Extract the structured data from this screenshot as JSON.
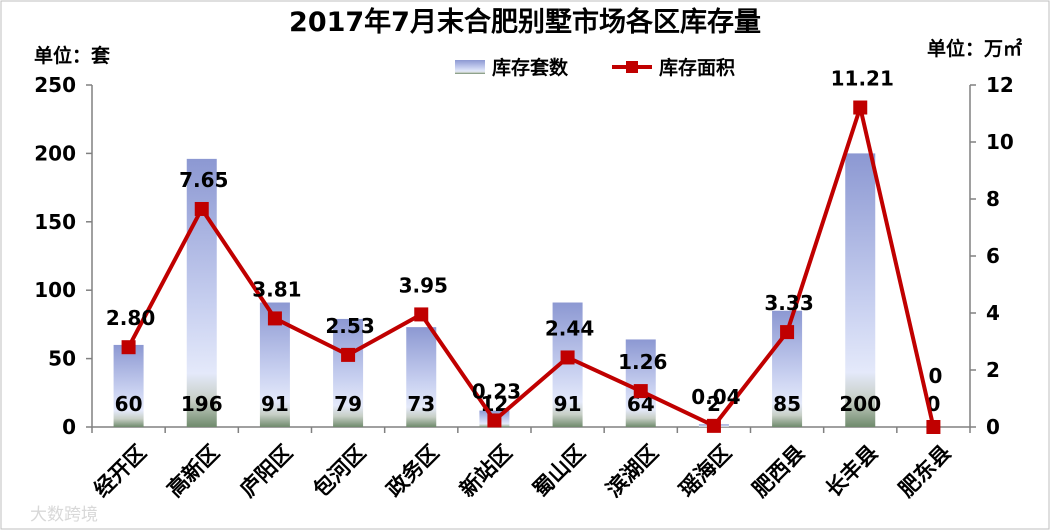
{
  "chart_data": {
    "type": "bar",
    "title": "2017年7月末合肥别墅市场各区库存量",
    "y_left_unit": "单位：套",
    "y_right_unit": "单位：万㎡",
    "categories": [
      "经开区",
      "高新区",
      "庐阳区",
      "包河区",
      "政务区",
      "新站区",
      "蜀山区",
      "滨湖区",
      "瑶海区",
      "肥西县",
      "长丰县",
      "肥东县"
    ],
    "series": [
      {
        "name": "库存套数",
        "type": "bar",
        "axis": "left",
        "values": [
          60,
          196,
          91,
          79,
          73,
          12,
          91,
          64,
          2,
          85,
          200,
          0
        ],
        "labels": [
          "60",
          "196",
          "91",
          "79",
          "73",
          "12",
          "91",
          "64",
          "2",
          "85",
          "200",
          "0"
        ],
        "color": "#8e9bd4"
      },
      {
        "name": "库存面积",
        "type": "line",
        "axis": "right",
        "values": [
          2.8,
          7.65,
          3.81,
          2.53,
          3.95,
          0.23,
          2.44,
          1.26,
          0.04,
          3.33,
          11.21,
          0
        ],
        "labels": [
          "2.80",
          "7.65",
          "3.81",
          "2.53",
          "3.95",
          "0.23",
          "2.44",
          "1.26",
          "0.04",
          "3.33",
          "11.21",
          "0"
        ],
        "color": "#c00000"
      }
    ],
    "y_left": {
      "range": [
        0,
        250
      ],
      "ticks": [
        "0",
        "50",
        "100",
        "150",
        "200",
        "250"
      ]
    },
    "y_right": {
      "range": [
        0,
        12
      ],
      "ticks": [
        "0",
        "2",
        "4",
        "6",
        "8",
        "10",
        "12"
      ]
    },
    "grid": false,
    "legend_position": "top-center"
  },
  "watermark": "大数跨境"
}
